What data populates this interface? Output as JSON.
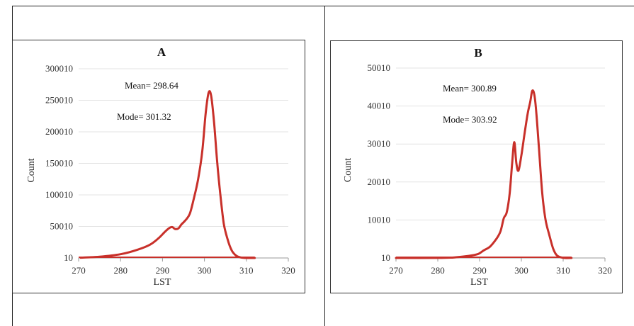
{
  "chart_data": [
    {
      "type": "line",
      "title": "A",
      "xlabel": "LST",
      "ylabel": "Count",
      "xlim": [
        270,
        320
      ],
      "ylim": [
        10,
        300010
      ],
      "x_ticks": [
        "270",
        "280",
        "290",
        "300",
        "310",
        "320"
      ],
      "y_ticks": [
        "10",
        "50010",
        "100010",
        "150010",
        "200010",
        "250010",
        "300010"
      ],
      "grid": true,
      "color": "#c8302a",
      "annotations": [
        "Mean= 298.64",
        "Mode= 301.32"
      ],
      "series": [
        {
          "x": [
            270.5,
            275,
            280,
            284,
            287,
            289,
            290.5,
            291.5,
            292.3,
            293,
            293.8,
            294.5,
            295.5,
            296.5,
            297.5,
            298.5,
            299.5,
            300.3,
            301,
            301.6,
            302.3,
            303,
            303.8,
            304.6,
            305.5,
            306.5,
            307.5,
            308.5,
            310,
            312
          ],
          "y": [
            500,
            2000,
            6000,
            13000,
            21000,
            31000,
            41000,
            47000,
            49000,
            46000,
            47000,
            53000,
            60000,
            70000,
            95000,
            125000,
            170000,
            230000,
            262000,
            257000,
            215000,
            155000,
            100000,
            55000,
            30000,
            12000,
            4000,
            1000,
            10,
            10
          ]
        }
      ]
    },
    {
      "type": "line",
      "title": "B",
      "xlabel": "LST",
      "ylabel": "Count",
      "xlim": [
        270,
        320
      ],
      "ylim": [
        10,
        50010
      ],
      "x_ticks": [
        "270",
        "280",
        "290",
        "300",
        "310",
        "320"
      ],
      "y_ticks": [
        "10",
        "10010",
        "20010",
        "30010",
        "40010",
        "50010"
      ],
      "grid": true,
      "color": "#c8302a",
      "annotations": [
        "Mean= 300.89",
        "Mode= 303.92"
      ],
      "series": [
        {
          "x": [
            270,
            280,
            284,
            287,
            289.5,
            291,
            292.5,
            294,
            295,
            295.8,
            296.5,
            297.2,
            297.8,
            298.3,
            298.8,
            299.3,
            300,
            300.8,
            301.5,
            302.1,
            302.6,
            303.1,
            303.6,
            304.2,
            305,
            305.8,
            306.7,
            307.6,
            308.5,
            310,
            312
          ],
          "y": [
            10,
            30,
            150,
            500,
            1000,
            2000,
            3000,
            5000,
            7000,
            10500,
            12000,
            17000,
            25000,
            30500,
            25000,
            23000,
            27000,
            33000,
            38000,
            41000,
            44000,
            43000,
            38000,
            29000,
            17000,
            10000,
            6000,
            2500,
            700,
            50,
            10
          ]
        }
      ]
    }
  ]
}
